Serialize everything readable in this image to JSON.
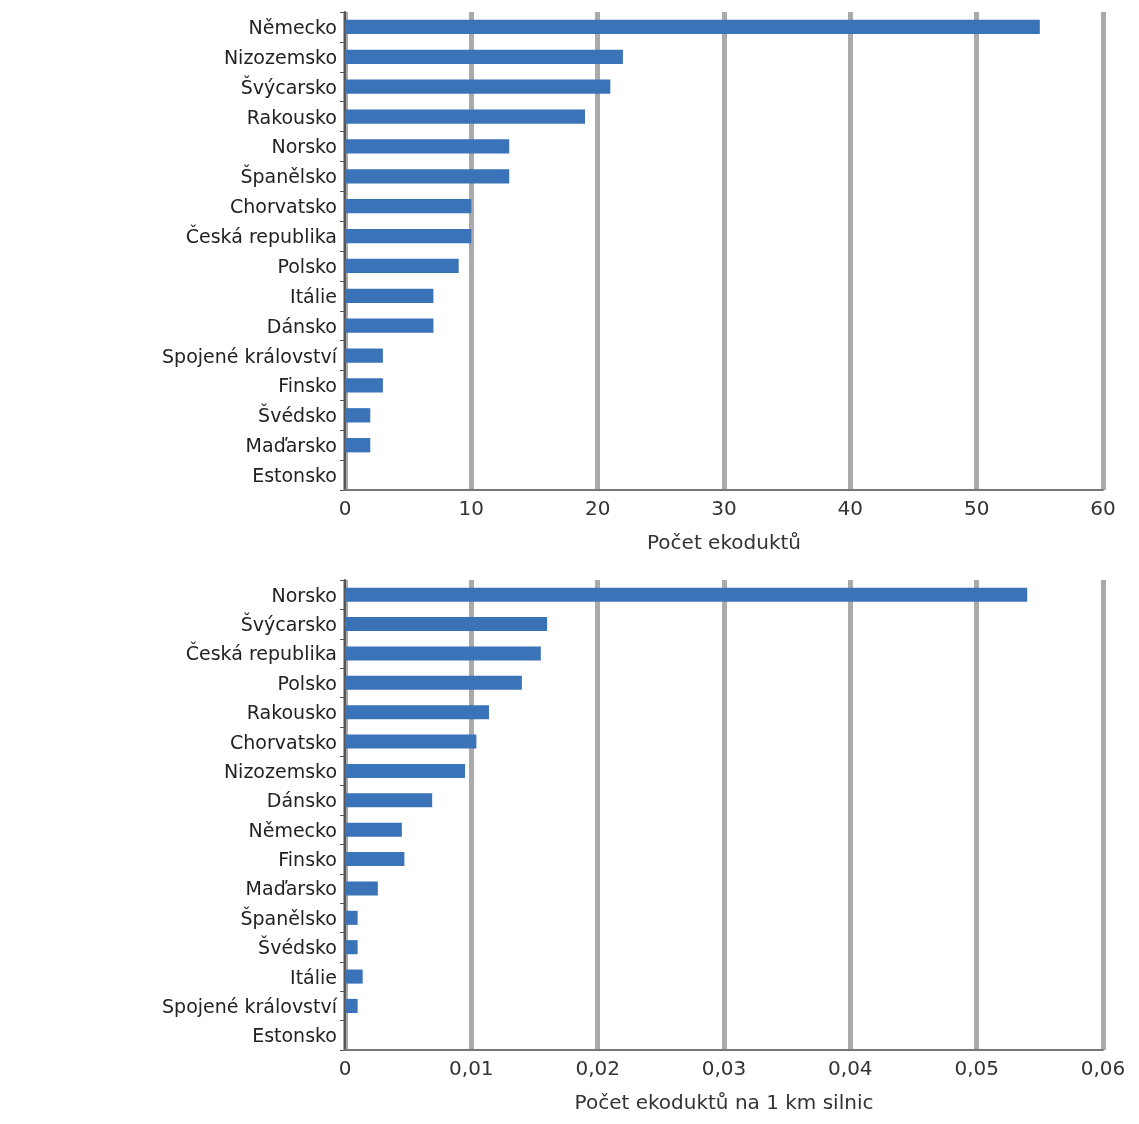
{
  "chart_data": [
    {
      "type": "bar",
      "orientation": "horizontal",
      "xlabel": "Počet ekoduktů",
      "categories": [
        "Německo",
        "Nizozemsko",
        "Švýcarsko",
        "Rakousko",
        "Norsko",
        "Španělsko",
        "Chorvatsko",
        "Česká republika",
        "Polsko",
        "Itálie",
        "Dánsko",
        "Spojené království",
        "Finsko",
        "Švédsko",
        "Maďarsko",
        "Estonsko"
      ],
      "values": [
        55,
        22,
        21,
        19,
        13,
        13,
        10,
        10,
        9,
        7,
        7,
        3,
        3,
        2,
        2,
        0
      ],
      "color": "#3a73b8",
      "xlim": [
        0,
        60
      ],
      "xticks": [
        0,
        10,
        20,
        30,
        40,
        50,
        60
      ],
      "grid": "x"
    },
    {
      "type": "bar",
      "orientation": "horizontal",
      "xlabel": "Počet ekoduktů na 1 km silnic",
      "categories": [
        "Norsko",
        "Švýcarsko",
        "Česká republika",
        "Polsko",
        "Rakousko",
        "Chorvatsko",
        "Nizozemsko",
        "Dánsko",
        "Německo",
        "Finsko",
        "Maďarsko",
        "Španělsko",
        "Švédsko",
        "Itálie",
        "Spojené království",
        "Estonsko"
      ],
      "values": [
        0.054,
        0.016,
        0.0155,
        0.014,
        0.0114,
        0.0104,
        0.0095,
        0.0069,
        0.0045,
        0.0047,
        0.0026,
        0.001,
        0.001,
        0.0014,
        0.001,
        0
      ],
      "color": "#3a73b8",
      "xlim": [
        0,
        0.06
      ],
      "xticks": [
        0,
        {
          "value": 0.01,
          "label": "0,01"
        },
        {
          "value": 0.02,
          "label": "0,02"
        },
        {
          "value": 0.03,
          "label": "0,03"
        },
        {
          "value": 0.04,
          "label": "0,04"
        },
        {
          "value": 0.05,
          "label": "0,05"
        },
        {
          "value": 0.06,
          "label": "0,06"
        }
      ],
      "grid": "x"
    }
  ]
}
